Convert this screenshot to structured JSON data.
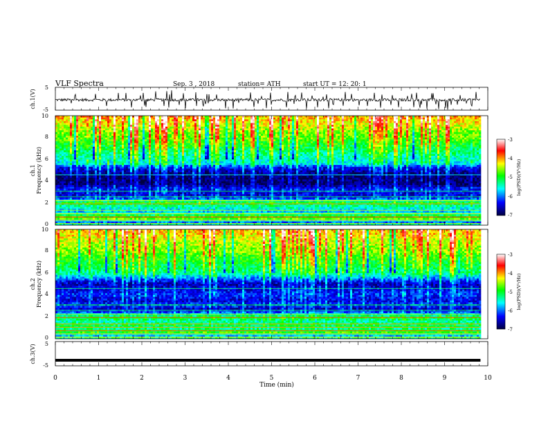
{
  "header": {
    "title": "VLF  Spectra",
    "date": "Sep. 3  , 2018",
    "station": "station= ATH",
    "start": "start  UT  =    12: 20: 1"
  },
  "chart_data": [
    {
      "type": "line",
      "panel": "ch1-waveform",
      "ylabel": "ch.1(V)",
      "yticks": [
        "5",
        "-5"
      ],
      "ylim": [
        -5,
        5
      ],
      "xlim": [
        0,
        10
      ],
      "trace": {
        "baseline": -0.5,
        "amplitude": 1.0,
        "end_min": 9.83,
        "color": "#000000"
      }
    },
    {
      "type": "heatmap",
      "panel": "ch1-spectrogram",
      "ylabel_channel": "ch.1",
      "ylabel": "Frequency  (kHz)",
      "yticks": [
        "0",
        "2",
        "4",
        "6",
        "8",
        "10"
      ],
      "ylim": [
        0,
        10
      ],
      "xlim": [
        0,
        10
      ],
      "end_min": 9.83,
      "bands_khz_logpsd": [
        [
          0,
          -5.2
        ],
        [
          0.3,
          -6.2
        ],
        [
          0.6,
          -4.6
        ],
        [
          0.9,
          -5.1
        ],
        [
          1.2,
          -5.8
        ],
        [
          1.7,
          -5.4
        ],
        [
          2.1,
          -5.0
        ],
        [
          2.4,
          -6.1
        ],
        [
          2.8,
          -6.5
        ],
        [
          3.3,
          -6.3
        ],
        [
          3.7,
          -6.8
        ],
        [
          4.3,
          -6.9
        ],
        [
          4.8,
          -6.7
        ],
        [
          5.3,
          -6.3
        ],
        [
          5.6,
          -5.6
        ],
        [
          6.0,
          -5.5
        ],
        [
          6.5,
          -5.3
        ],
        [
          7.0,
          -5.1
        ],
        [
          7.5,
          -4.9
        ],
        [
          8.0,
          -4.7
        ],
        [
          8.5,
          -4.6
        ],
        [
          9.0,
          -4.4
        ],
        [
          9.5,
          -4.2
        ],
        [
          10,
          -4.0
        ]
      ],
      "colorbar": {
        "label": "log(PSD)(V²/Hz)",
        "ticks": [
          "-3",
          "-4",
          "-5",
          "-6",
          "-7"
        ],
        "range": [
          -7,
          -3
        ]
      }
    },
    {
      "type": "heatmap",
      "panel": "ch2-spectrogram",
      "ylabel_channel": "ch.2",
      "ylabel": "Frequency  (kHz)",
      "yticks": [
        "0",
        "2",
        "4",
        "6",
        "8",
        "10"
      ],
      "ylim": [
        0,
        10
      ],
      "xlim": [
        0,
        10
      ],
      "end_min": 9.83,
      "bands_khz_logpsd": [
        [
          0,
          -5.0
        ],
        [
          0.3,
          -5.9
        ],
        [
          0.6,
          -4.8
        ],
        [
          0.9,
          -5.3
        ],
        [
          1.2,
          -5.1
        ],
        [
          1.6,
          -5.4
        ],
        [
          2.0,
          -4.9
        ],
        [
          2.3,
          -5.9
        ],
        [
          2.7,
          -6.6
        ],
        [
          3.1,
          -6.1
        ],
        [
          3.5,
          -6.5
        ],
        [
          4.0,
          -6.2
        ],
        [
          4.5,
          -6.4
        ],
        [
          5.0,
          -6.6
        ],
        [
          5.5,
          -6.0
        ],
        [
          6.0,
          -5.3
        ],
        [
          6.5,
          -5.1
        ],
        [
          7.0,
          -5.0
        ],
        [
          7.5,
          -4.8
        ],
        [
          8.0,
          -4.6
        ],
        [
          8.5,
          -4.5
        ],
        [
          9.0,
          -4.4
        ],
        [
          9.5,
          -4.2
        ],
        [
          10,
          -4.1
        ]
      ],
      "colorbar": {
        "label": "log(PSD)(V²/Hz)",
        "ticks": [
          "-3",
          "-4",
          "-5",
          "-6",
          "-7"
        ],
        "range": [
          -7,
          -3
        ]
      }
    },
    {
      "type": "line",
      "panel": "ch3-waveform",
      "ylabel": "ch.3(V)",
      "yticks": [
        "5",
        "-5"
      ],
      "ylim": [
        -5,
        5
      ],
      "xlim": [
        0,
        10
      ],
      "xlabel": "Time  (min)",
      "xticks": [
        "0",
        "1",
        "2",
        "3",
        "4",
        "5",
        "6",
        "7",
        "8",
        "9",
        "10"
      ],
      "trace": {
        "baseline": -2.7,
        "amplitude": 0.0,
        "end_min": 9.83,
        "color": "#000000"
      }
    }
  ],
  "colors": {
    "colormap": [
      "#000040",
      "#0000ff",
      "#00ffff",
      "#00ff00",
      "#ffff00",
      "#ff0000",
      "#ffffff"
    ],
    "axis": "#000000"
  }
}
